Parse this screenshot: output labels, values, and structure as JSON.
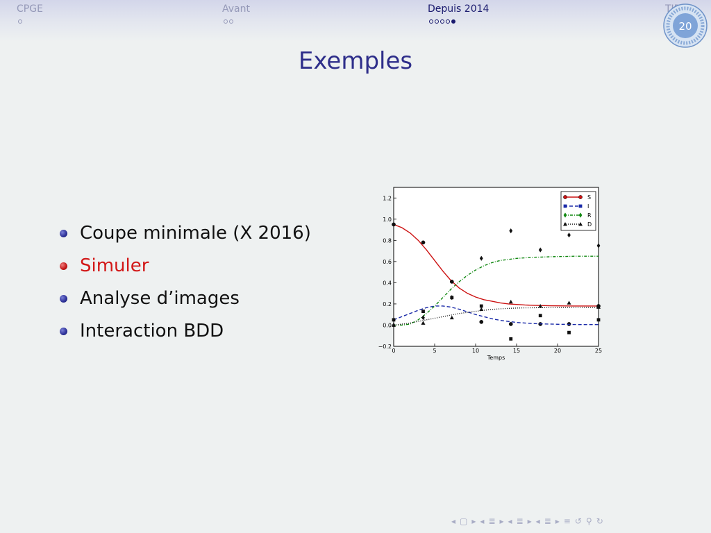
{
  "header": {
    "sections": [
      {
        "label": "CPGE",
        "dots": 1,
        "filled": 0,
        "active": false
      },
      {
        "label": "Avant",
        "dots": 2,
        "filled": 0,
        "active": false
      },
      {
        "label": "Depuis 2014",
        "dots": 5,
        "filled": 1,
        "active": true
      },
      {
        "label": "TIP",
        "dots": 0,
        "filled": 0,
        "active": false
      }
    ],
    "page_number": "20"
  },
  "slide": {
    "title": "Exemples",
    "bullets": [
      {
        "text": "Coupe minimale (X 2016)",
        "highlight": false
      },
      {
        "text": "Simuler",
        "highlight": true
      },
      {
        "text": "Analyse d’images",
        "highlight": false
      },
      {
        "text": "Interaction BDD",
        "highlight": false
      }
    ]
  },
  "chart_data": {
    "type": "line",
    "xlabel": "Temps",
    "ylabel": "",
    "xlim": [
      0,
      25
    ],
    "ylim": [
      -0.2,
      1.3
    ],
    "xticks": [
      0,
      5,
      10,
      15,
      20,
      25
    ],
    "yticks": [
      -0.2,
      0.0,
      0.2,
      0.4,
      0.6,
      0.8,
      1.0,
      1.2
    ],
    "grid": false,
    "legend_position": "top-right",
    "series": [
      {
        "name": "S",
        "color": "#cc1111",
        "dash": "solid",
        "marker": "circle",
        "curve_x": [
          0,
          1,
          2,
          3,
          4,
          5,
          6,
          7,
          8,
          9,
          10,
          11,
          12,
          13,
          14,
          15,
          16,
          17,
          18,
          19,
          20,
          21,
          22,
          23,
          24,
          25
        ],
        "curve_y": [
          0.95,
          0.92,
          0.87,
          0.8,
          0.71,
          0.61,
          0.51,
          0.42,
          0.35,
          0.3,
          0.265,
          0.24,
          0.225,
          0.21,
          0.2,
          0.195,
          0.19,
          0.187,
          0.185,
          0.183,
          0.182,
          0.181,
          0.18,
          0.18,
          0.18,
          0.18
        ],
        "points_x": [
          0,
          3.6,
          7.1,
          10.7,
          14.3,
          17.9,
          21.4,
          25
        ],
        "points_y": [
          0.95,
          0.78,
          0.41,
          0.03,
          0.01,
          0.01,
          0.01,
          0.18
        ]
      },
      {
        "name": "I",
        "color": "#1a2aa8",
        "dash": "dashed",
        "marker": "square",
        "curve_x": [
          0,
          1,
          2,
          3,
          4,
          5,
          6,
          7,
          8,
          9,
          10,
          11,
          12,
          13,
          14,
          15,
          16,
          17,
          18,
          19,
          20,
          21,
          22,
          23,
          24,
          25
        ],
        "curve_y": [
          0.05,
          0.08,
          0.11,
          0.14,
          0.165,
          0.18,
          0.18,
          0.17,
          0.15,
          0.125,
          0.1,
          0.08,
          0.06,
          0.045,
          0.035,
          0.025,
          0.02,
          0.015,
          0.012,
          0.01,
          0.008,
          0.007,
          0.006,
          0.005,
          0.005,
          0.005
        ],
        "points_x": [
          0,
          3.6,
          7.1,
          10.7,
          14.3,
          17.9,
          21.4,
          25
        ],
        "points_y": [
          0.05,
          0.13,
          0.26,
          0.18,
          -0.13,
          0.09,
          -0.07,
          0.05
        ]
      },
      {
        "name": "R",
        "color": "#118811",
        "dash": "dashdot",
        "marker": "diamond",
        "curve_x": [
          0,
          1,
          2,
          3,
          4,
          5,
          6,
          7,
          8,
          9,
          10,
          11,
          12,
          13,
          14,
          15,
          16,
          17,
          18,
          19,
          20,
          21,
          22,
          23,
          24,
          25
        ],
        "curve_y": [
          0.0,
          0.0,
          0.01,
          0.05,
          0.11,
          0.18,
          0.26,
          0.34,
          0.41,
          0.47,
          0.52,
          0.56,
          0.59,
          0.61,
          0.62,
          0.63,
          0.635,
          0.64,
          0.642,
          0.645,
          0.647,
          0.648,
          0.65,
          0.65,
          0.65,
          0.65
        ],
        "points_x": [
          0,
          3.6,
          7.1,
          10.7,
          14.3,
          17.9,
          21.4,
          25
        ],
        "points_y": [
          0.0,
          0.07,
          0.26,
          0.63,
          0.89,
          0.71,
          0.85,
          0.75
        ]
      },
      {
        "name": "D",
        "color": "#111111",
        "dash": "dotted",
        "marker": "triangle",
        "curve_x": [
          0,
          1,
          2,
          3,
          4,
          5,
          6,
          7,
          8,
          9,
          10,
          11,
          12,
          13,
          14,
          15,
          16,
          17,
          18,
          19,
          20,
          21,
          22,
          23,
          24,
          25
        ],
        "curve_y": [
          0.0,
          0.01,
          0.02,
          0.035,
          0.05,
          0.065,
          0.08,
          0.095,
          0.11,
          0.12,
          0.13,
          0.14,
          0.148,
          0.154,
          0.158,
          0.161,
          0.163,
          0.164,
          0.165,
          0.166,
          0.166,
          0.167,
          0.167,
          0.167,
          0.167,
          0.167
        ],
        "points_x": [
          0,
          3.6,
          7.1,
          10.7,
          14.3,
          17.9,
          21.4,
          25
        ],
        "points_y": [
          0.0,
          0.02,
          0.07,
          0.15,
          0.22,
          0.18,
          0.21,
          0.17
        ]
      }
    ]
  },
  "nav_icons": [
    "nav-left-icon",
    "frame-icon",
    "nav-right-icon",
    "nav-left-icon",
    "subsection-icon",
    "nav-right-icon",
    "nav-left-icon",
    "section-icon",
    "nav-right-icon",
    "nav-left-icon",
    "section-icon",
    "nav-right-icon",
    "align-icon",
    "search-back-icon",
    "search-icon",
    "zoom-icon"
  ]
}
